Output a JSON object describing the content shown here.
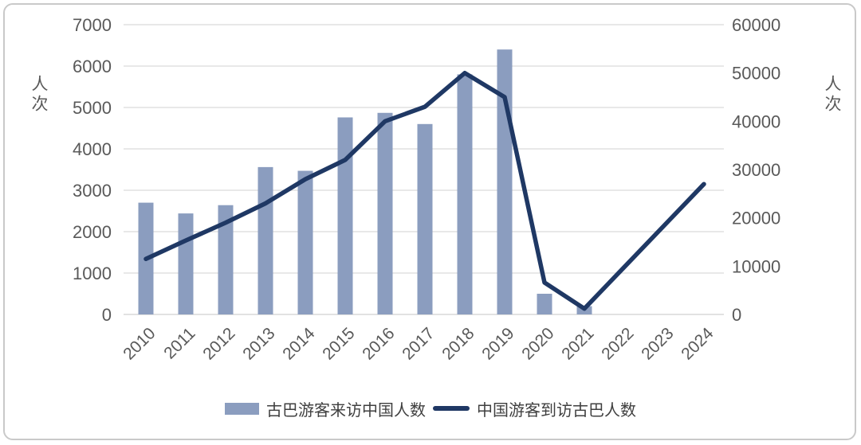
{
  "chart_data": {
    "type": "combo-bar-line",
    "title": "",
    "categories": [
      "2010",
      "2011",
      "2012",
      "2013",
      "2014",
      "2015",
      "2016",
      "2017",
      "2018",
      "2019",
      "2020",
      "2021",
      "2022",
      "2023",
      "2024"
    ],
    "series": [
      {
        "name": "古巴游客来访中国人数",
        "type": "bar",
        "axis": "left",
        "color": "#8b9dbf",
        "values": [
          2700,
          2440,
          2640,
          3560,
          3470,
          4760,
          4870,
          4600,
          5800,
          6400,
          500,
          200,
          null,
          null,
          null
        ]
      },
      {
        "name": "中国游客到访古巴人数",
        "type": "line",
        "axis": "right",
        "color": "#1f3864",
        "values": [
          11500,
          15300,
          19000,
          23000,
          28000,
          32000,
          40000,
          43000,
          50000,
          45000,
          6600,
          1200,
          9800,
          18400,
          27000
        ]
      }
    ],
    "left_axis": {
      "title": "人次",
      "min": 0,
      "max": 7000,
      "step": 1000,
      "ticks": [
        0,
        1000,
        2000,
        3000,
        4000,
        5000,
        6000,
        7000
      ]
    },
    "right_axis": {
      "title": "人次",
      "min": 0,
      "max": 60000,
      "step": 10000,
      "ticks": [
        0,
        10000,
        20000,
        30000,
        40000,
        50000,
        60000
      ]
    },
    "grid": true,
    "legend_position": "bottom"
  },
  "colors": {
    "bar": "#8b9dbf",
    "line": "#1f3864",
    "gridline": "#d9d9d9",
    "axis_text": "#595959",
    "legend_text": "#3f3f3f",
    "frame_border": "#c9c9c9",
    "background": "#ffffff"
  }
}
